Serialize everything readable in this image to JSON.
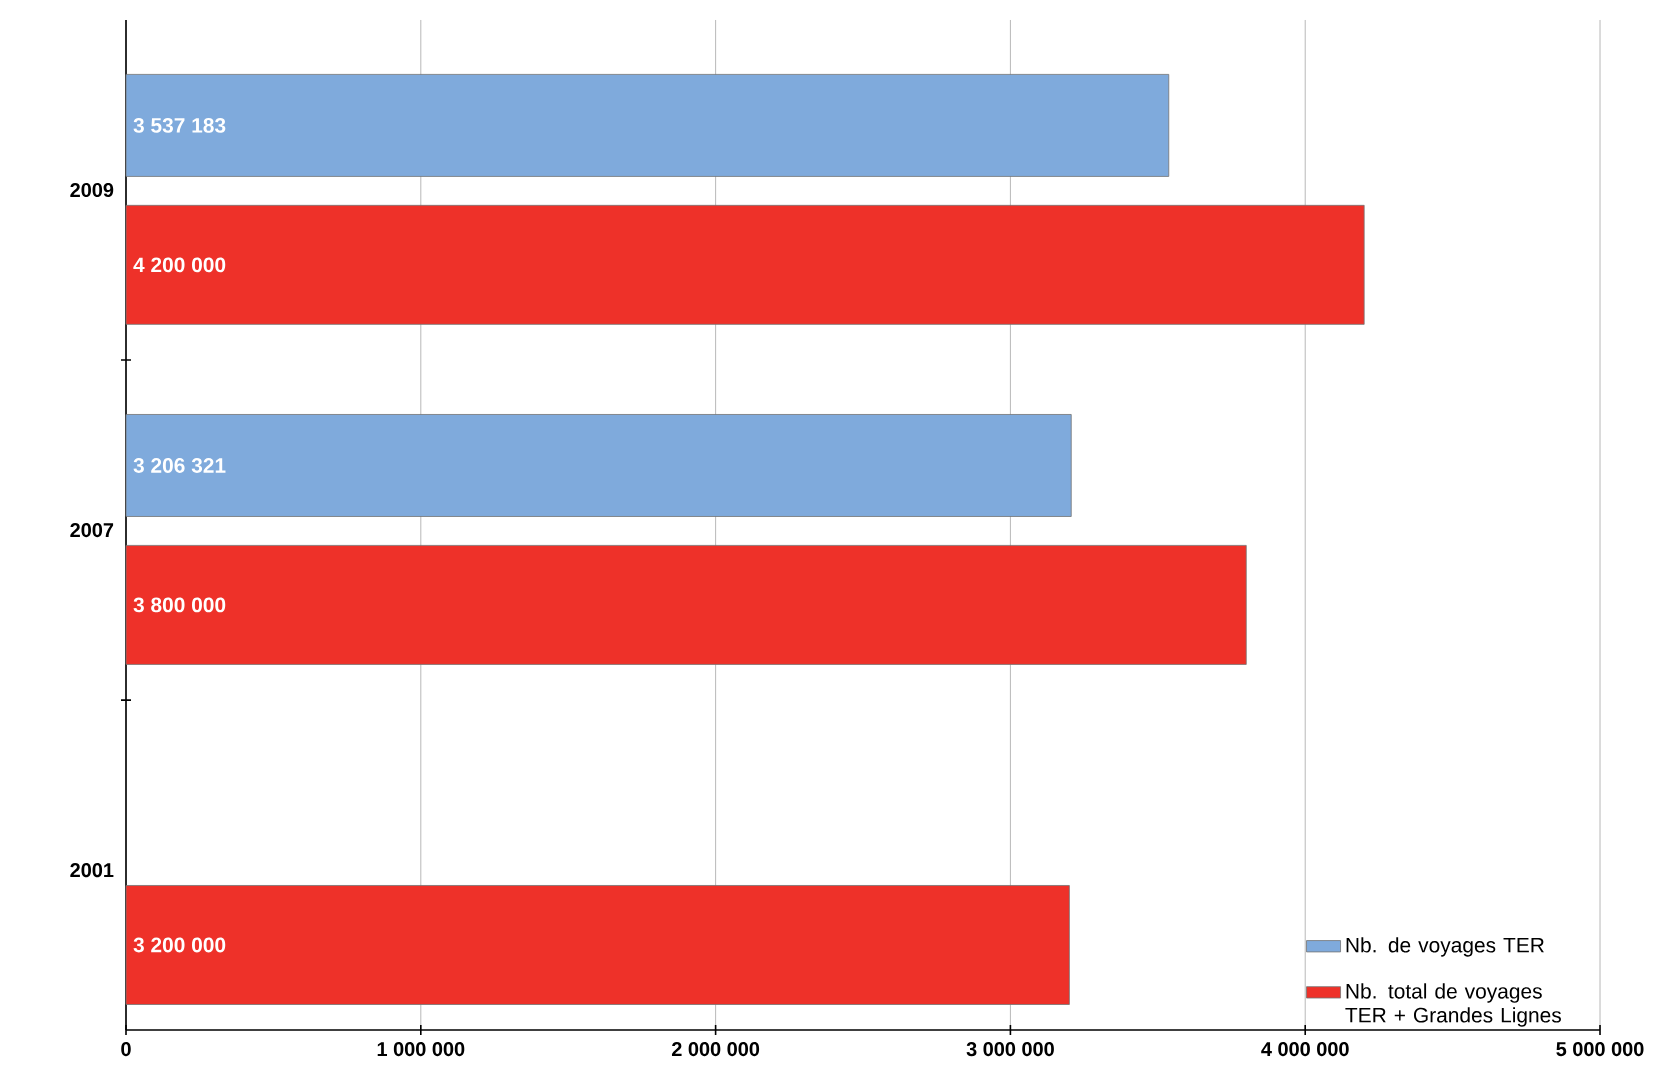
{
  "chart_data": {
    "type": "bar",
    "orientation": "horizontal",
    "categories": [
      "2009",
      "2007",
      "2001"
    ],
    "series": [
      {
        "name": "Nb. de voyages TER",
        "color": "#7faadc",
        "values": [
          3537183,
          3206321,
          null
        ],
        "value_labels": [
          "3 537 183",
          "3 206 321",
          null
        ]
      },
      {
        "name": "Nb. total de voyages TER + Grandes Lignes",
        "color": "#ee3129",
        "values": [
          4200000,
          3800000,
          3200000
        ],
        "value_labels": [
          "4 200 000",
          "3 800 000",
          "3 200 000"
        ]
      }
    ],
    "xlim": [
      0,
      5000000
    ],
    "xticks": [
      0,
      {
        "value": 1000000,
        "label": "1 000 000"
      },
      {
        "value": 2000000,
        "label": "2 000 000"
      },
      {
        "value": 3000000,
        "label": "3 000 000"
      },
      {
        "value": 4000000,
        "label": "4 000 000"
      },
      {
        "value": 5000000,
        "label": "5 000 000"
      }
    ],
    "grid": "x",
    "legend": "bottom right"
  }
}
